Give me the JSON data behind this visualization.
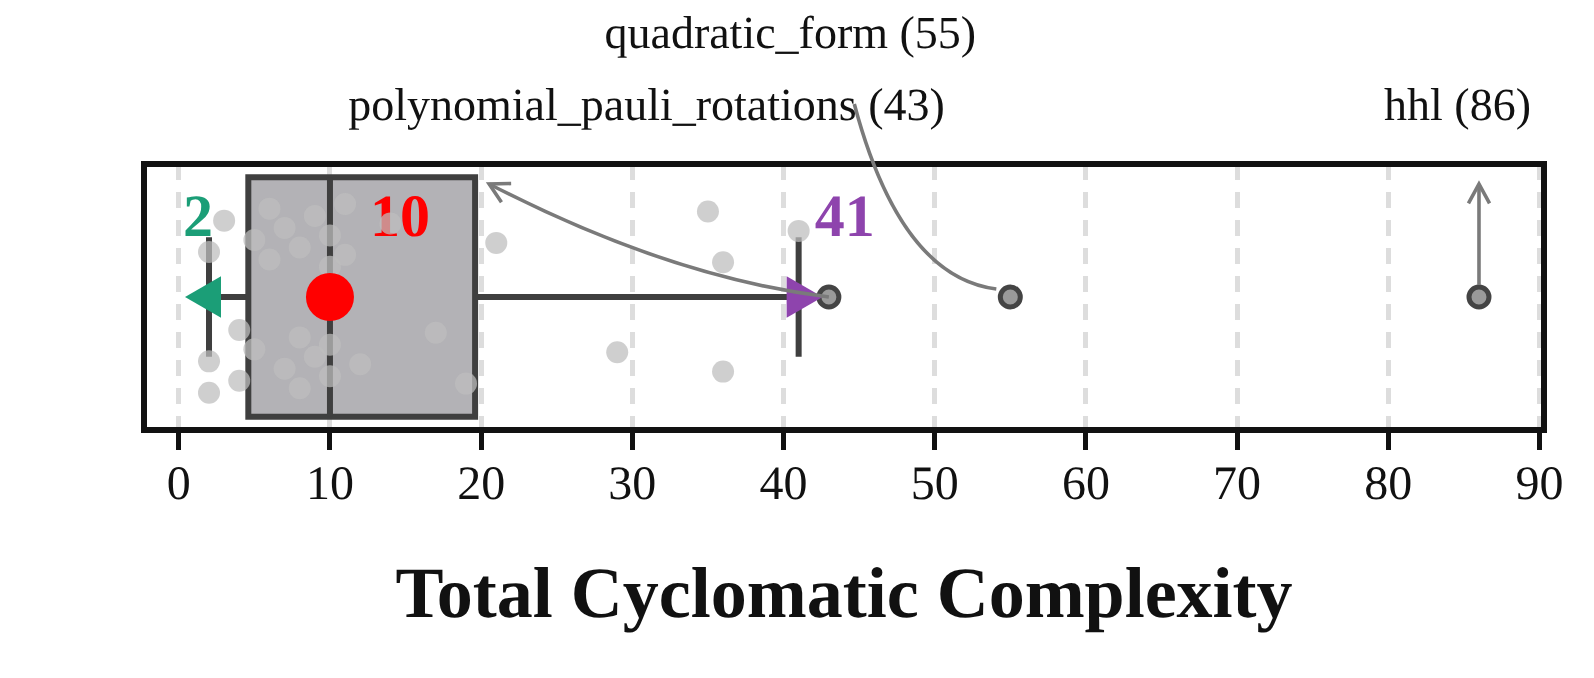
{
  "chart_data": {
    "type": "box",
    "orientation": "horizontal",
    "categories": [
      null
    ],
    "xlabel": "Total Cyclomatic Complexity",
    "xlim": [
      -2.3,
      90.3
    ],
    "xticks": [
      0,
      10,
      20,
      30,
      40,
      50,
      60,
      70,
      80,
      90
    ],
    "grid": "x",
    "tick_labels": "x",
    "legend": false,
    "series": [
      {
        "type": "box",
        "color": "#b3b2b6",
        "boxes": [
          {
            "low": 2,
            "q1": 4.6,
            "median": 10,
            "q3": 19.6,
            "high": 41,
            "outliers": [
              43,
              55,
              86
            ]
          }
        ]
      },
      {
        "type": "scatter",
        "color": "#bdbdbd",
        "marker": "circle",
        "x": [
          null,
          null,
          null,
          null,
          null,
          null,
          null,
          null,
          null,
          null,
          null,
          null,
          null,
          null,
          null,
          null,
          null,
          null,
          null,
          null,
          null,
          null,
          null,
          null,
          null,
          null,
          null,
          null,
          null,
          null,
          null,
          null,
          null
        ],
        "values": [
          2,
          2,
          2,
          3,
          4,
          4,
          5,
          5,
          6,
          6,
          7,
          7,
          8,
          8,
          8,
          9,
          9,
          10,
          10,
          10,
          10,
          11,
          11,
          12,
          14,
          17,
          19,
          21,
          29,
          35,
          36,
          36,
          41
        ]
      },
      {
        "type": "scatter",
        "color": "#ff0000",
        "marker": "circle",
        "values": [
          10
        ],
        "value_labels": [
          "10"
        ]
      },
      {
        "type": "scatter",
        "color": "#1b9e77",
        "marker": "triangle",
        "values": [
          2
        ],
        "value_labels": [
          "2"
        ]
      },
      {
        "type": "scatter",
        "color": "#8e44ad",
        "marker": "triangle",
        "values": [
          41
        ],
        "value_labels": [
          "41"
        ]
      }
    ],
    "annotations": [
      "quadratic_form (55)",
      "polynomial_pauli_rotations (43)",
      "hhl (86)"
    ]
  }
}
